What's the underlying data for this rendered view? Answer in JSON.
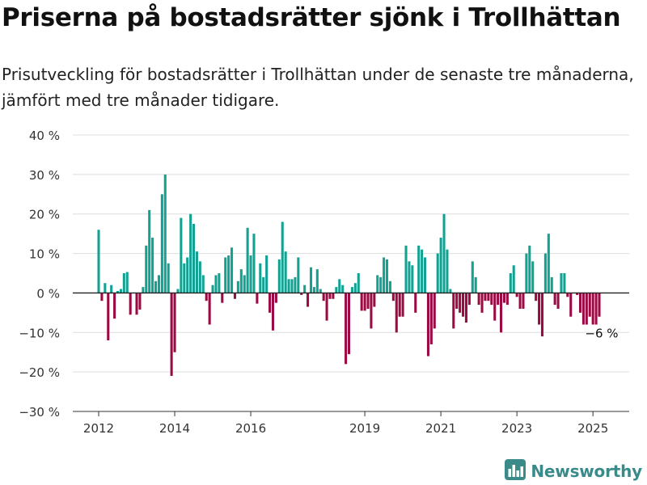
{
  "title": "Priserna på bostadsrätter sjönk i Trollhättan",
  "subtitle": "Prisutveckling för bostadsrätter i Trollhättan under de senaste tre månaderna, jämfört med tre månader tidigare.",
  "brand": {
    "name": "Newsworthy",
    "icon": "bar-chart-logo-icon"
  },
  "colors": {
    "positive": "#13a192",
    "negative": "#9b0a43",
    "grid": "#dddddd",
    "axis": "#333333",
    "brand": "#3a8a8a"
  },
  "chart_data": {
    "type": "bar",
    "title": "Priserna på bostadsrätter sjönk i Trollhättan",
    "xlabel": "",
    "ylabel": "",
    "ylim": [
      -30,
      40
    ],
    "y_unit": "%",
    "y_ticks": [
      {
        "value": 40,
        "label": "40 %"
      },
      {
        "value": 30,
        "label": "30 %"
      },
      {
        "value": 20,
        "label": "20 %"
      },
      {
        "value": 10,
        "label": "10 %"
      },
      {
        "value": 0,
        "label": "0 %"
      },
      {
        "value": -10,
        "label": "−10 %"
      },
      {
        "value": -20,
        "label": "−20 %"
      },
      {
        "value": -30,
        "label": "−30 %"
      }
    ],
    "x_ticks": [
      "2012",
      "2014",
      "2016",
      "2019",
      "2021",
      "2023",
      "2025"
    ],
    "x_range": [
      "2012-01",
      "2025-03"
    ],
    "grid": true,
    "legend": "none",
    "annotation": {
      "x": "2025-03",
      "label": "−6 %"
    },
    "x": [
      "2012-01",
      "2012-02",
      "2012-03",
      "2012-04",
      "2012-05",
      "2012-06",
      "2012-07",
      "2012-08",
      "2012-09",
      "2012-10",
      "2012-11",
      "2012-12",
      "2013-01",
      "2013-02",
      "2013-03",
      "2013-04",
      "2013-05",
      "2013-06",
      "2013-07",
      "2013-08",
      "2013-09",
      "2013-10",
      "2013-11",
      "2013-12",
      "2014-01",
      "2014-02",
      "2014-03",
      "2014-04",
      "2014-05",
      "2014-06",
      "2014-07",
      "2014-08",
      "2014-09",
      "2014-10",
      "2014-11",
      "2014-12",
      "2015-01",
      "2015-02",
      "2015-03",
      "2015-04",
      "2015-05",
      "2015-06",
      "2015-07",
      "2015-08",
      "2015-09",
      "2015-10",
      "2015-11",
      "2015-12",
      "2016-01",
      "2016-02",
      "2016-03",
      "2016-04",
      "2016-05",
      "2016-06",
      "2016-07",
      "2016-08",
      "2016-09",
      "2016-10",
      "2016-11",
      "2016-12",
      "2017-01",
      "2017-02",
      "2017-03",
      "2017-04",
      "2017-05",
      "2017-06",
      "2017-07",
      "2017-08",
      "2017-09",
      "2017-10",
      "2017-11",
      "2017-12",
      "2018-01",
      "2018-02",
      "2018-03",
      "2018-04",
      "2018-05",
      "2018-06",
      "2018-07",
      "2018-08",
      "2018-09",
      "2018-10",
      "2018-11",
      "2018-12",
      "2019-01",
      "2019-02",
      "2019-03",
      "2019-04",
      "2019-05",
      "2019-06",
      "2019-07",
      "2019-08",
      "2019-09",
      "2019-10",
      "2019-11",
      "2019-12",
      "2020-01",
      "2020-02",
      "2020-03",
      "2020-04",
      "2020-05",
      "2020-06",
      "2020-07",
      "2020-08",
      "2020-09",
      "2020-10",
      "2020-11",
      "2020-12",
      "2021-01",
      "2021-02",
      "2021-03",
      "2021-04",
      "2021-05",
      "2021-06",
      "2021-07",
      "2021-08",
      "2021-09",
      "2021-10",
      "2021-11",
      "2021-12",
      "2022-01",
      "2022-02",
      "2022-03",
      "2022-04",
      "2022-05",
      "2022-06",
      "2022-07",
      "2022-08",
      "2022-09",
      "2022-10",
      "2022-11",
      "2022-12",
      "2023-01",
      "2023-02",
      "2023-03",
      "2023-04",
      "2023-05",
      "2023-06",
      "2023-07",
      "2023-08",
      "2023-09",
      "2023-10",
      "2023-11",
      "2023-12",
      "2024-01",
      "2024-02",
      "2024-03",
      "2024-04",
      "2024-05",
      "2024-06",
      "2024-07",
      "2024-08",
      "2024-09",
      "2024-10",
      "2024-11",
      "2024-12",
      "2025-01",
      "2025-02",
      "2025-03"
    ],
    "values": [
      16,
      -2,
      2.5,
      -12,
      2,
      -6.5,
      0.5,
      1,
      5,
      5.3,
      -5.5,
      0,
      -5.5,
      -4.2,
      1.5,
      12,
      21,
      14,
      3,
      4.5,
      25,
      30,
      7.5,
      -21,
      -15,
      1,
      19,
      7.5,
      9,
      20,
      17.5,
      10.5,
      8,
      4.5,
      -2,
      -8,
      2,
      4.5,
      5,
      -2.5,
      9,
      9.5,
      11.5,
      -1.5,
      3,
      6,
      4.5,
      16.5,
      9.5,
      15,
      -2.7,
      7.5,
      4,
      9.5,
      -5,
      -9.5,
      -2.5,
      8.5,
      18,
      10.5,
      3.5,
      3.5,
      4,
      9,
      -0.5,
      2,
      -3.5,
      6.5,
      1.5,
      6,
      1,
      -2,
      -7,
      -1.5,
      -1.5,
      1.5,
      3.5,
      2,
      -18,
      -15.5,
      1.5,
      2.5,
      5,
      -4.5,
      -4.5,
      -4,
      -9,
      -3.5,
      4.5,
      4,
      9,
      8.5,
      3,
      -2,
      -10,
      -6,
      -6,
      12,
      8,
      7,
      -5,
      12,
      11,
      9,
      -16,
      -13,
      -9,
      10,
      14,
      20,
      11,
      1,
      -9,
      -4,
      -5,
      -6,
      -7.5,
      -3,
      8,
      4,
      -3,
      -5,
      -2,
      -2,
      -3,
      -7,
      -3,
      -10,
      -2.5,
      -3,
      5,
      7,
      -1,
      -4,
      -4,
      10,
      12,
      8,
      -2,
      -8,
      -11,
      10,
      15,
      4,
      -3,
      -4,
      5,
      5,
      -1,
      -6,
      0,
      -0.5,
      -5,
      -8,
      -8,
      -6,
      -8,
      -8,
      -6
    ]
  }
}
